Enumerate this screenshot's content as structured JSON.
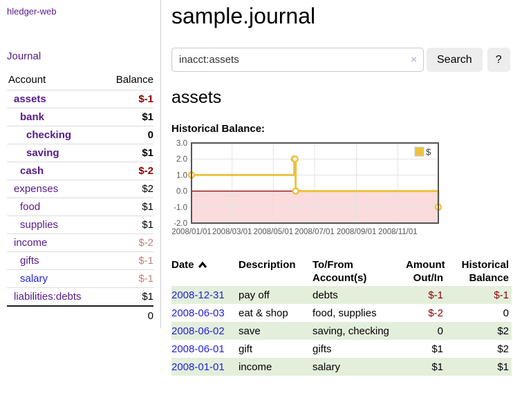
{
  "app": {
    "title": "hledger-web"
  },
  "colors": {
    "link_purple": "#551a8b",
    "link_blue": "#2222dd",
    "negative_red": "#8b0000",
    "negative_soft_red": "#c47f7f",
    "row_stripe_green": "#e3efdb",
    "series_yellow": "#edc240"
  },
  "sidebar": {
    "journal_link": "Journal",
    "table": {
      "headers": {
        "account": "Account",
        "balance": "Balance"
      },
      "accounts": [
        {
          "name": "assets",
          "balance": "$-1",
          "depth": 1,
          "bold": true,
          "negative": "strong"
        },
        {
          "name": "bank",
          "balance": "$1",
          "depth": 2,
          "bold": true
        },
        {
          "name": "checking",
          "balance": "0",
          "depth": 3,
          "bold": true
        },
        {
          "name": "saving",
          "balance": "$1",
          "depth": 3,
          "bold": true
        },
        {
          "name": "cash",
          "balance": "$-2",
          "depth": 2,
          "bold": true,
          "negative": "strong"
        },
        {
          "name": "expenses",
          "balance": "$2",
          "depth": 1,
          "bold": false
        },
        {
          "name": "food",
          "balance": "$1",
          "depth": 2,
          "bold": false
        },
        {
          "name": "supplies",
          "balance": "$1",
          "depth": 2,
          "bold": false
        },
        {
          "name": "income",
          "balance": "$-2",
          "depth": 1,
          "bold": false,
          "negative": "soft"
        },
        {
          "name": "gifts",
          "balance": "$-1",
          "depth": 2,
          "bold": false,
          "negative": "soft"
        },
        {
          "name": "salary",
          "balance": "$-1",
          "depth": 2,
          "bold": false,
          "negative": "soft",
          "link": "unvisited"
        },
        {
          "name": "liabilities:debts",
          "balance": "$1",
          "depth": 1,
          "bold": false
        }
      ],
      "total": "0"
    }
  },
  "main": {
    "title": "sample.journal",
    "search": {
      "value": "inacct:assets",
      "clear_icon": "×",
      "search_button": "Search",
      "help_button": "?"
    },
    "account_heading": "assets",
    "chart_title": "Historical Balance:"
  },
  "chart_data": {
    "type": "line",
    "steps": true,
    "title": "Historical Balance",
    "series": [
      {
        "name": "$",
        "color": "#edc240",
        "points": [
          [
            "2008-01-01",
            1
          ],
          [
            "2008-06-01",
            2
          ],
          [
            "2008-06-02",
            2
          ],
          [
            "2008-06-03",
            0
          ],
          [
            "2008-12-31",
            -1
          ]
        ]
      }
    ],
    "x_range": [
      "2008-01-01",
      "2008-12-31"
    ],
    "x_ticks": [
      {
        "v": "2008-01-01",
        "label": "2008/01/01"
      },
      {
        "v": "2008-03-01",
        "label": "2008/03/01"
      },
      {
        "v": "2008-05-01",
        "label": "2008/05/01"
      },
      {
        "v": "2008-07-01",
        "label": "2008/07/01"
      },
      {
        "v": "2008-09-01",
        "label": "2008/09/01"
      },
      {
        "v": "2008-11-01",
        "label": "2008/11/01"
      }
    ],
    "y_ticks": [
      {
        "v": 3,
        "label": "3.0"
      },
      {
        "v": 2,
        "label": "2.0"
      },
      {
        "v": 1,
        "label": "1.0"
      },
      {
        "v": 0,
        "label": "0.0"
      },
      {
        "v": -1,
        "label": "-1.0"
      },
      {
        "v": -2,
        "label": "-2.0"
      }
    ],
    "ylim": [
      -2,
      3
    ],
    "grid": true,
    "legend": {
      "label": "$",
      "position": "top-right"
    },
    "negative_region": {
      "from": 0,
      "to": -2,
      "fill": "#fbdcdc",
      "zero_line_color": "#8b0000"
    }
  },
  "transactions": {
    "columns": [
      {
        "lines": [
          "Date"
        ],
        "sorted": "asc",
        "align": "left"
      },
      {
        "lines": [
          "Description"
        ],
        "align": "left"
      },
      {
        "lines": [
          "To/From",
          "Account(s)"
        ],
        "align": "left"
      },
      {
        "lines": [
          "Amount",
          "Out/In"
        ],
        "align": "right"
      },
      {
        "lines": [
          "Historical",
          "Balance"
        ],
        "align": "right"
      }
    ],
    "rows": [
      {
        "date": "2008-12-31",
        "description": "pay off",
        "accounts": "debts",
        "amount": "$-1",
        "amount_negative": true,
        "balance": "$-1",
        "balance_negative": true
      },
      {
        "date": "2008-06-03",
        "description": "eat & shop",
        "accounts": "food, supplies",
        "amount": "$-2",
        "amount_negative": true,
        "balance": "0",
        "balance_negative": false
      },
      {
        "date": "2008-06-02",
        "description": "save",
        "accounts": "saving, checking",
        "amount": "0",
        "amount_negative": false,
        "balance": "$2",
        "balance_negative": false
      },
      {
        "date": "2008-06-01",
        "description": "gift",
        "accounts": "gifts",
        "amount": "$1",
        "amount_negative": false,
        "balance": "$2",
        "balance_negative": false
      },
      {
        "date": "2008-01-01",
        "description": "income",
        "accounts": "salary",
        "amount": "$1",
        "amount_negative": false,
        "balance": "$1",
        "balance_negative": false
      }
    ]
  }
}
